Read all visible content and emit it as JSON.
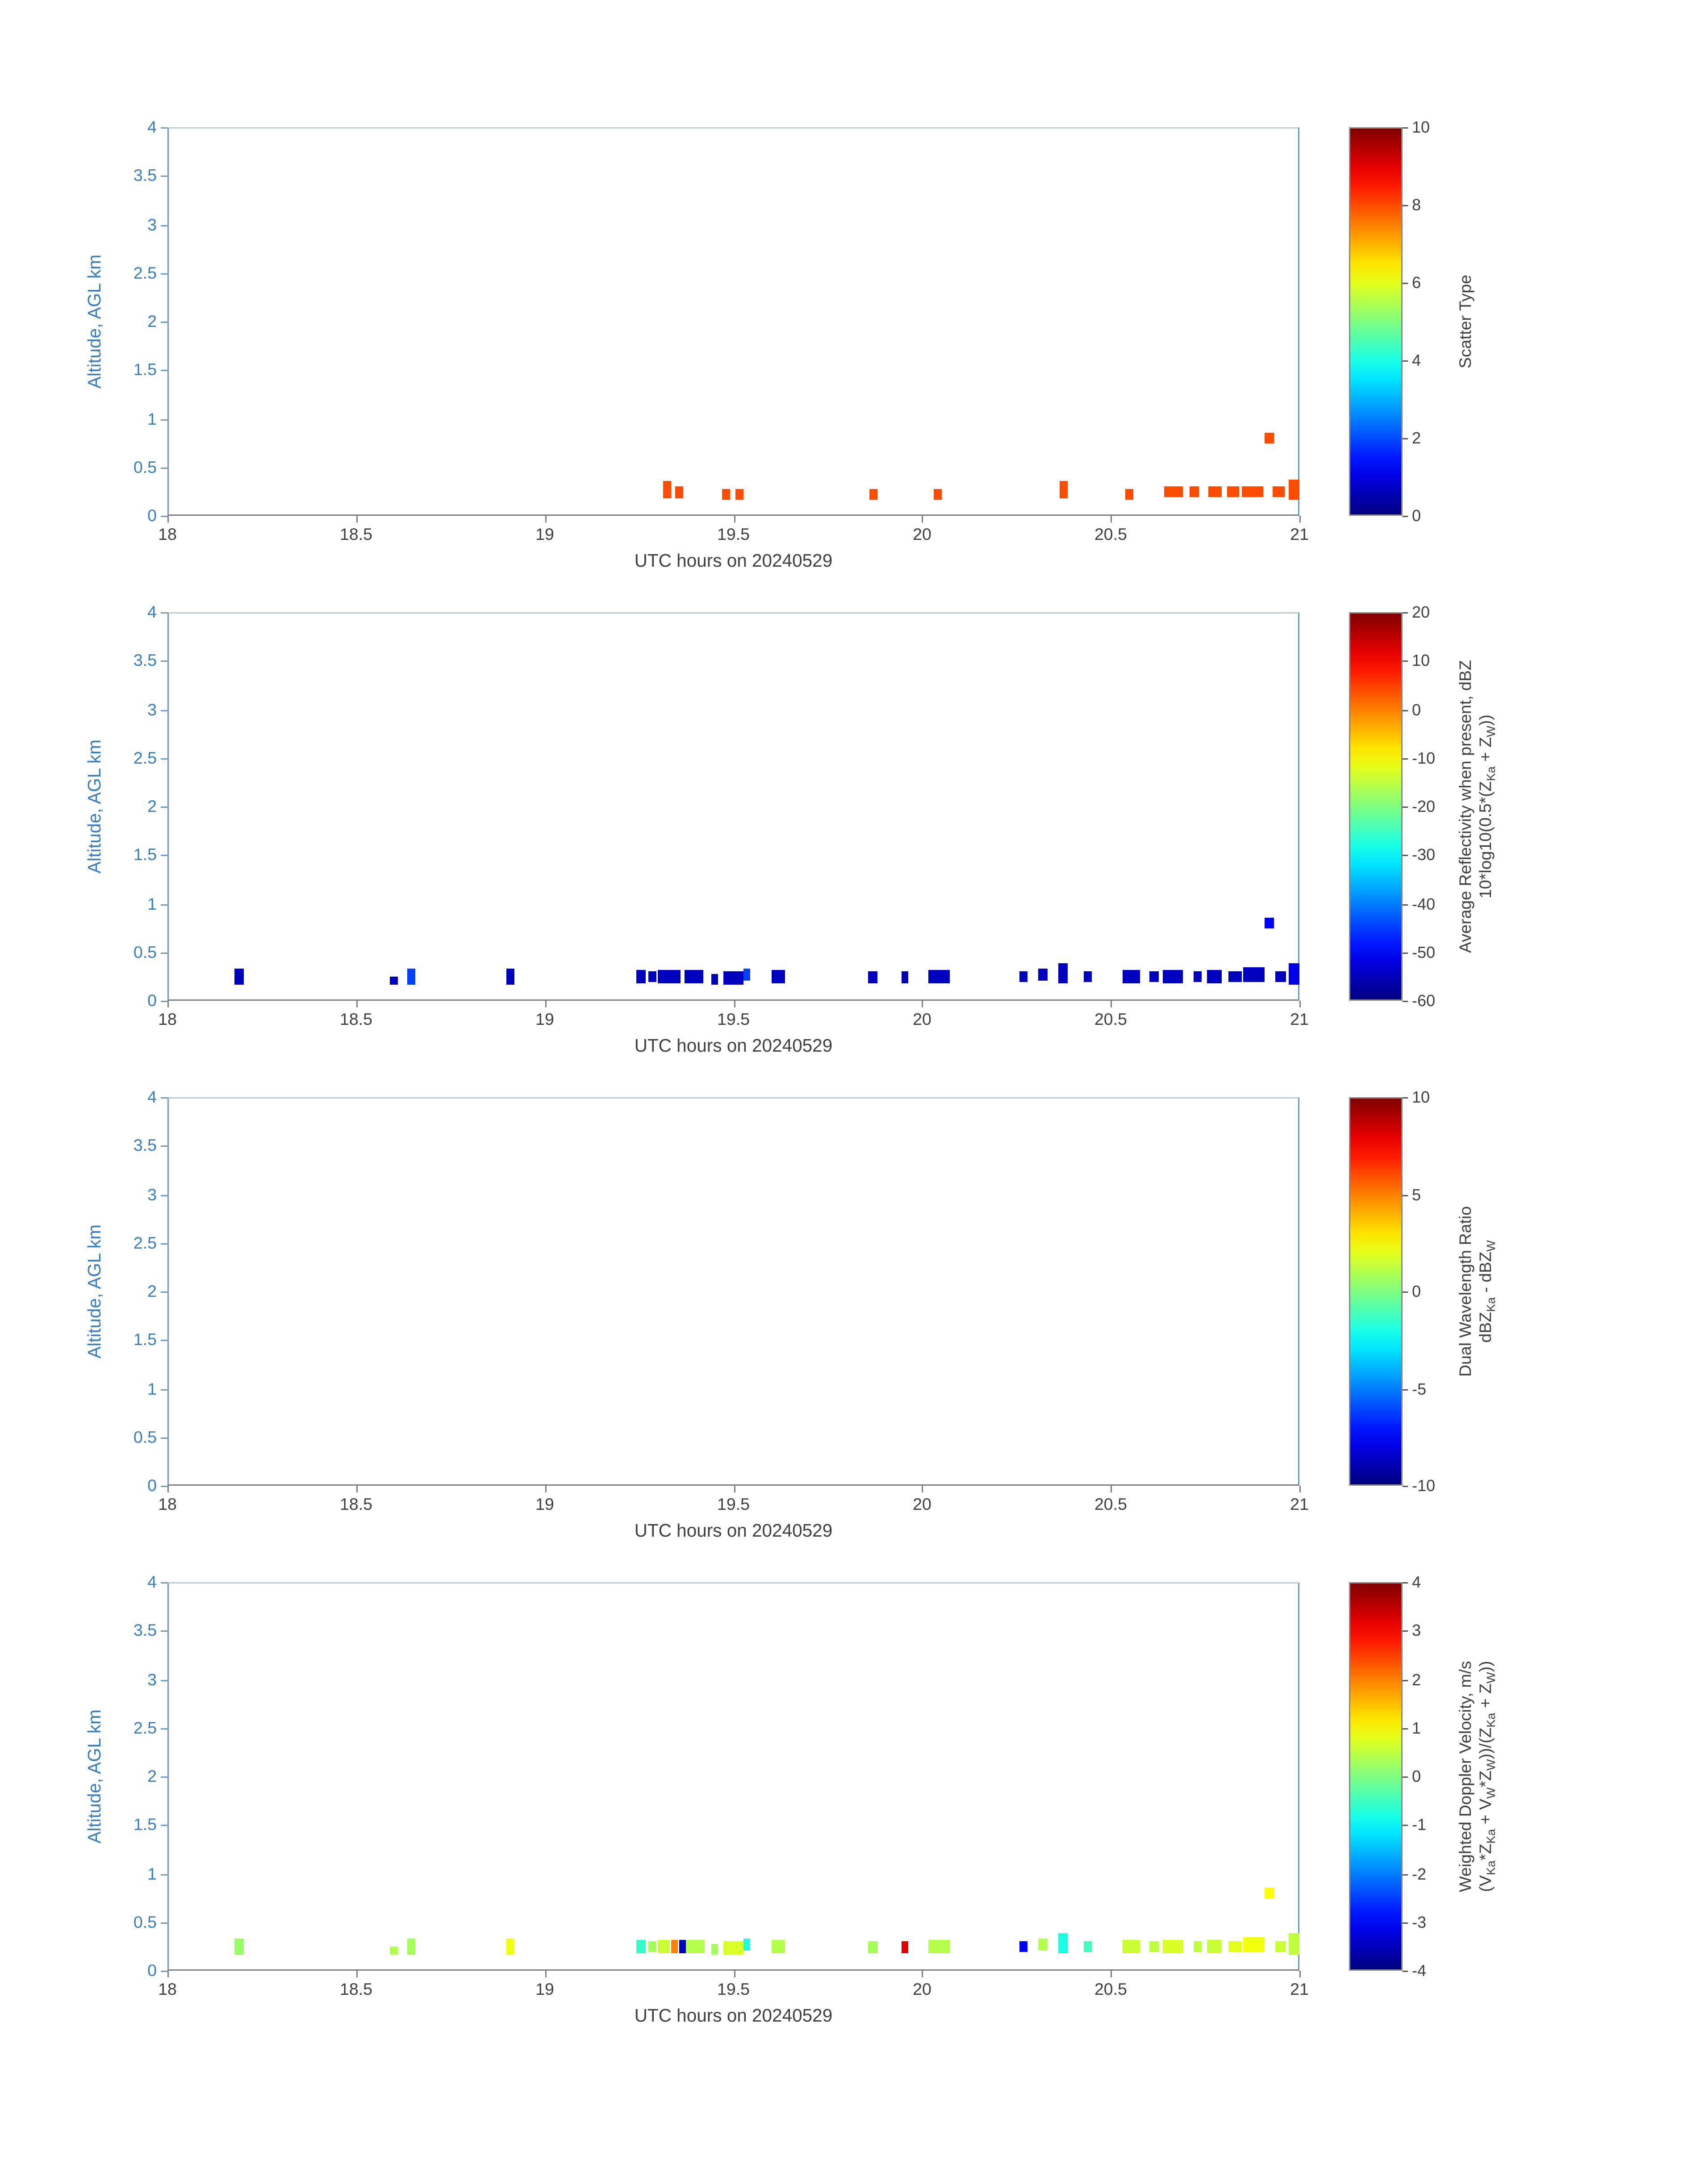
{
  "figure": {
    "background": "#ffffff",
    "colors": {
      "y_text": "#3a7dbf",
      "x_text": "#3f3f3f",
      "axis_left": "#6f9cc6",
      "axis_bottom": "#7f7f7f",
      "axis_top": "#b5cde0",
      "axis_right": "#5b9bd5",
      "colorbar_border": "#888888",
      "colormap": "jet"
    },
    "x_tick_labels": [
      "18",
      "18.5",
      "19",
      "19.5",
      "20",
      "20.5",
      "21"
    ],
    "y_tick_labels": [
      "0",
      "0.5",
      "1",
      "1.5",
      "2",
      "2.5",
      "3",
      "3.5",
      "4"
    ]
  },
  "chart_data": [
    {
      "type": "heatmap",
      "name": "scatter-type",
      "xlabel": "UTC hours on 20240529",
      "ylabel": "Altitude, AGL km",
      "xlim": [
        18,
        21
      ],
      "ylim": [
        0,
        4
      ],
      "colorbar": {
        "range": [
          0,
          10
        ],
        "ticks": [
          "0",
          "2",
          "4",
          "6",
          "8",
          "10"
        ],
        "label_lines": [
          [
            {
              "t": "Scatter Type"
            }
          ]
        ]
      },
      "points": [
        {
          "t": 19.325,
          "alt": 0.27,
          "v": 8,
          "w": 0.022,
          "h": 0.18
        },
        {
          "t": 19.355,
          "alt": 0.24,
          "v": 8
        },
        {
          "t": 19.48,
          "alt": 0.22,
          "v": 8
        },
        {
          "t": 19.515,
          "alt": 0.22,
          "v": 8
        },
        {
          "t": 19.87,
          "alt": 0.22,
          "v": 8
        },
        {
          "t": 20.04,
          "alt": 0.22,
          "v": 8
        },
        {
          "t": 20.375,
          "alt": 0.27,
          "v": 8,
          "h": 0.17
        },
        {
          "t": 20.55,
          "alt": 0.22,
          "v": 8
        },
        {
          "t": 20.665,
          "alt": 0.25,
          "v": 8,
          "w": 0.05
        },
        {
          "t": 20.72,
          "alt": 0.25,
          "v": 8,
          "w": 0.025
        },
        {
          "t": 20.775,
          "alt": 0.25,
          "v": 8,
          "w": 0.035
        },
        {
          "t": 20.825,
          "alt": 0.25,
          "v": 8,
          "w": 0.03
        },
        {
          "t": 20.875,
          "alt": 0.25,
          "v": 8,
          "w": 0.055
        },
        {
          "t": 20.92,
          "alt": 0.8,
          "v": 8
        },
        {
          "t": 20.945,
          "alt": 0.25,
          "v": 8,
          "w": 0.03
        },
        {
          "t": 20.985,
          "alt": 0.27,
          "v": 8,
          "w": 0.028,
          "h": 0.2
        }
      ]
    },
    {
      "type": "heatmap",
      "name": "average-reflectivity",
      "xlabel": "UTC hours on 20240529",
      "ylabel": "Altitude, AGL km",
      "xlim": [
        18,
        21
      ],
      "ylim": [
        0,
        4
      ],
      "colorbar": {
        "range": [
          -60,
          20
        ],
        "ticks": [
          "-60",
          "-50",
          "-40",
          "-30",
          "-20",
          "-10",
          "0",
          "10",
          "20"
        ],
        "label_lines": [
          [
            {
              "t": "Average Reflectivity when present, dBZ"
            }
          ],
          [
            {
              "t": "10*log10(0.5*(Z"
            },
            {
              "s": "Ka"
            },
            {
              "t": " + Z"
            },
            {
              "s": "W"
            },
            {
              "t": "))"
            }
          ]
        ]
      },
      "points": [
        {
          "t": 18.19,
          "alt": 0.25,
          "v": -55,
          "h": 0.16
        },
        {
          "t": 18.6,
          "alt": 0.21,
          "v": -55,
          "w": 0.018,
          "h": 0.09
        },
        {
          "t": 18.645,
          "alt": 0.25,
          "v": -45,
          "h": 0.16
        },
        {
          "t": 18.91,
          "alt": 0.25,
          "v": -55,
          "h": 0.16
        },
        {
          "t": 19.255,
          "alt": 0.25,
          "v": -55,
          "h": 0.14
        },
        {
          "t": 19.285,
          "alt": 0.25,
          "v": -55
        },
        {
          "t": 19.33,
          "alt": 0.25,
          "v": -55,
          "w": 0.06,
          "h": 0.14
        },
        {
          "t": 19.395,
          "alt": 0.25,
          "v": -55,
          "w": 0.05,
          "h": 0.14
        },
        {
          "t": 19.45,
          "alt": 0.22,
          "v": -55,
          "w": 0.02
        },
        {
          "t": 19.5,
          "alt": 0.24,
          "v": -55,
          "w": 0.05,
          "h": 0.14
        },
        {
          "t": 19.535,
          "alt": 0.27,
          "v": -45,
          "w": 0.02
        },
        {
          "t": 19.62,
          "alt": 0.25,
          "v": -55,
          "w": 0.035,
          "h": 0.14
        },
        {
          "t": 19.87,
          "alt": 0.24,
          "v": -55,
          "w": 0.025
        },
        {
          "t": 19.955,
          "alt": 0.24,
          "v": -55,
          "w": 0.02
        },
        {
          "t": 20.045,
          "alt": 0.25,
          "v": -55,
          "w": 0.055,
          "h": 0.14
        },
        {
          "t": 20.27,
          "alt": 0.25,
          "v": -55,
          "w": 0.022
        },
        {
          "t": 20.32,
          "alt": 0.27,
          "v": -55,
          "w": 0.022
        },
        {
          "t": 20.375,
          "alt": 0.28,
          "v": -55,
          "w": 0.025,
          "h": 0.2
        },
        {
          "t": 20.44,
          "alt": 0.25,
          "v": -55,
          "w": 0.022
        },
        {
          "t": 20.555,
          "alt": 0.25,
          "v": -55,
          "w": 0.045,
          "h": 0.14
        },
        {
          "t": 20.615,
          "alt": 0.25,
          "v": -55,
          "w": 0.025
        },
        {
          "t": 20.665,
          "alt": 0.25,
          "v": -55,
          "w": 0.055,
          "h": 0.14
        },
        {
          "t": 20.73,
          "alt": 0.25,
          "v": -55,
          "w": 0.02
        },
        {
          "t": 20.775,
          "alt": 0.25,
          "v": -55,
          "w": 0.04,
          "h": 0.14
        },
        {
          "t": 20.83,
          "alt": 0.25,
          "v": -55,
          "w": 0.035
        },
        {
          "t": 20.88,
          "alt": 0.27,
          "v": -55,
          "w": 0.055,
          "h": 0.16
        },
        {
          "t": 20.92,
          "alt": 0.8,
          "v": -50
        },
        {
          "t": 20.95,
          "alt": 0.25,
          "v": -55,
          "w": 0.03
        },
        {
          "t": 20.985,
          "alt": 0.27,
          "v": -52,
          "w": 0.028,
          "h": 0.22
        }
      ]
    },
    {
      "type": "heatmap",
      "name": "dual-wavelength-ratio",
      "xlabel": "UTC hours on 20240529",
      "ylabel": "Altitude, AGL km",
      "xlim": [
        18,
        21
      ],
      "ylim": [
        0,
        4
      ],
      "colorbar": {
        "range": [
          -10,
          10
        ],
        "ticks": [
          "-10",
          "-5",
          "0",
          "5",
          "10"
        ],
        "label_lines": [
          [
            {
              "t": "Dual Wavelength Ratio"
            }
          ],
          [
            {
              "t": "dBZ"
            },
            {
              "s": "Ka"
            },
            {
              "t": " - dBZ"
            },
            {
              "s": "W"
            }
          ]
        ]
      },
      "points": []
    },
    {
      "type": "heatmap",
      "name": "weighted-doppler-velocity",
      "xlabel": "UTC hours on 20240529",
      "ylabel": "Altitude, AGL km",
      "xlim": [
        18,
        21
      ],
      "ylim": [
        0,
        4
      ],
      "colorbar": {
        "range": [
          -4,
          4
        ],
        "ticks": [
          "-4",
          "-3",
          "-2",
          "-1",
          "0",
          "1",
          "2",
          "3",
          "4"
        ],
        "label_lines": [
          [
            {
              "t": "Weighted Doppler Velocity, m/s"
            }
          ],
          [
            {
              "t": "(V"
            },
            {
              "s": "Ka"
            },
            {
              "t": "*Z"
            },
            {
              "s": "Ka"
            },
            {
              "t": " + V"
            },
            {
              "s": "W"
            },
            {
              "t": "*Z"
            },
            {
              "s": "W"
            },
            {
              "t": "))/(Z"
            },
            {
              "s": "Ka"
            },
            {
              "t": " + Z"
            },
            {
              "s": "W"
            },
            {
              "t": "))"
            }
          ]
        ]
      },
      "points": [
        {
          "t": 18.19,
          "alt": 0.25,
          "v": 0.2,
          "h": 0.16
        },
        {
          "t": 18.6,
          "alt": 0.21,
          "v": 0.4,
          "w": 0.018,
          "h": 0.09
        },
        {
          "t": 18.645,
          "alt": 0.25,
          "v": 0.3,
          "h": 0.16
        },
        {
          "t": 18.91,
          "alt": 0.25,
          "v": 0.9,
          "h": 0.16
        },
        {
          "t": 19.255,
          "alt": 0.25,
          "v": -0.6,
          "h": 0.14
        },
        {
          "t": 19.285,
          "alt": 0.25,
          "v": 0.3
        },
        {
          "t": 19.315,
          "alt": 0.25,
          "v": 0.6,
          "w": 0.03,
          "h": 0.14
        },
        {
          "t": 19.345,
          "alt": 0.25,
          "v": 2.0,
          "w": 0.018,
          "h": 0.14
        },
        {
          "t": 19.365,
          "alt": 0.25,
          "v": -3.5,
          "w": 0.018,
          "h": 0.14
        },
        {
          "t": 19.4,
          "alt": 0.25,
          "v": 0.4,
          "w": 0.05,
          "h": 0.14
        },
        {
          "t": 19.45,
          "alt": 0.22,
          "v": 0.3,
          "w": 0.02
        },
        {
          "t": 19.5,
          "alt": 0.24,
          "v": 0.7,
          "w": 0.05,
          "h": 0.14
        },
        {
          "t": 19.535,
          "alt": 0.27,
          "v": -0.8,
          "w": 0.02
        },
        {
          "t": 19.62,
          "alt": 0.25,
          "v": 0.4,
          "w": 0.035,
          "h": 0.14
        },
        {
          "t": 19.87,
          "alt": 0.24,
          "v": 0.3,
          "w": 0.025
        },
        {
          "t": 19.955,
          "alt": 0.24,
          "v": 3.2,
          "w": 0.02
        },
        {
          "t": 20.045,
          "alt": 0.25,
          "v": 0.4,
          "w": 0.055,
          "h": 0.14
        },
        {
          "t": 20.27,
          "alt": 0.25,
          "v": -3.0,
          "w": 0.022
        },
        {
          "t": 20.32,
          "alt": 0.27,
          "v": 0.4,
          "w": 0.022
        },
        {
          "t": 20.375,
          "alt": 0.28,
          "v": -0.8,
          "w": 0.025,
          "h": 0.2
        },
        {
          "t": 20.44,
          "alt": 0.25,
          "v": -0.5,
          "w": 0.022
        },
        {
          "t": 20.555,
          "alt": 0.25,
          "v": 0.6,
          "w": 0.045,
          "h": 0.14
        },
        {
          "t": 20.615,
          "alt": 0.25,
          "v": 0.5,
          "w": 0.025
        },
        {
          "t": 20.665,
          "alt": 0.25,
          "v": 0.7,
          "w": 0.055,
          "h": 0.14
        },
        {
          "t": 20.73,
          "alt": 0.25,
          "v": 0.5,
          "w": 0.02
        },
        {
          "t": 20.775,
          "alt": 0.25,
          "v": 0.6,
          "w": 0.04,
          "h": 0.14
        },
        {
          "t": 20.83,
          "alt": 0.25,
          "v": 0.8,
          "w": 0.035
        },
        {
          "t": 20.88,
          "alt": 0.27,
          "v": 0.9,
          "w": 0.055,
          "h": 0.16
        },
        {
          "t": 20.92,
          "alt": 0.8,
          "v": 1.0
        },
        {
          "t": 20.95,
          "alt": 0.25,
          "v": 0.6,
          "w": 0.03
        },
        {
          "t": 20.985,
          "alt": 0.27,
          "v": 0.5,
          "w": 0.028,
          "h": 0.22
        }
      ]
    }
  ]
}
